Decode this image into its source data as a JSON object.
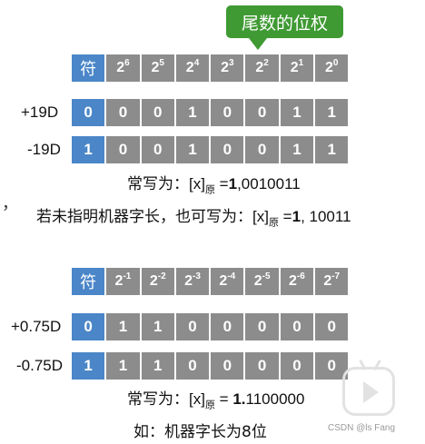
{
  "callout": {
    "label": "尾数的位权"
  },
  "integer_table": {
    "header": [
      {
        "type": "sign",
        "text": "符"
      },
      {
        "base": "2",
        "exp": "6"
      },
      {
        "base": "2",
        "exp": "5"
      },
      {
        "base": "2",
        "exp": "4"
      },
      {
        "base": "2",
        "exp": "3"
      },
      {
        "base": "2",
        "exp": "2"
      },
      {
        "base": "2",
        "exp": "1"
      },
      {
        "base": "2",
        "exp": "0"
      }
    ],
    "rows": [
      {
        "label": "+19D",
        "bits": [
          "0",
          "0",
          "0",
          "1",
          "0",
          "0",
          "1",
          "1"
        ]
      },
      {
        "label": "-19D",
        "bits": [
          "1",
          "0",
          "0",
          "1",
          "0",
          "0",
          "1",
          "1"
        ]
      }
    ],
    "note1": {
      "prefix": "常写为：",
      "x": "[x]",
      "sub": "原",
      "eq": " =",
      "bold": "1",
      "rest": ",0010011"
    },
    "note2": {
      "prefix": "若未指明机器字长，也可写为：",
      "x": "[x]",
      "sub": "原",
      "eq": " =",
      "bold": "1",
      "rest": ", 10011"
    }
  },
  "fraction_table": {
    "header": [
      {
        "type": "sign",
        "text": "符"
      },
      {
        "base": "2",
        "exp": "-1"
      },
      {
        "base": "2",
        "exp": "-2"
      },
      {
        "base": "2",
        "exp": "-3"
      },
      {
        "base": "2",
        "exp": "-4"
      },
      {
        "base": "2",
        "exp": "-5"
      },
      {
        "base": "2",
        "exp": "-6"
      },
      {
        "base": "2",
        "exp": "-7"
      }
    ],
    "rows": [
      {
        "label": "+0.75D",
        "bits": [
          "0",
          "1",
          "1",
          "0",
          "0",
          "0",
          "0",
          "0"
        ]
      },
      {
        "label": "-0.75D",
        "bits": [
          "1",
          "1",
          "1",
          "0",
          "0",
          "0",
          "0",
          "0"
        ]
      }
    ],
    "note1": {
      "prefix": "常写为：",
      "x": "[x]",
      "sub": "原",
      "eq": " = ",
      "bold": "1.",
      "rest": "1100000"
    },
    "note2": {
      "text": "如：机器字长为8位"
    }
  },
  "stray_mark": "，",
  "watermark": {
    "text": "CSDN @ls Fang"
  }
}
